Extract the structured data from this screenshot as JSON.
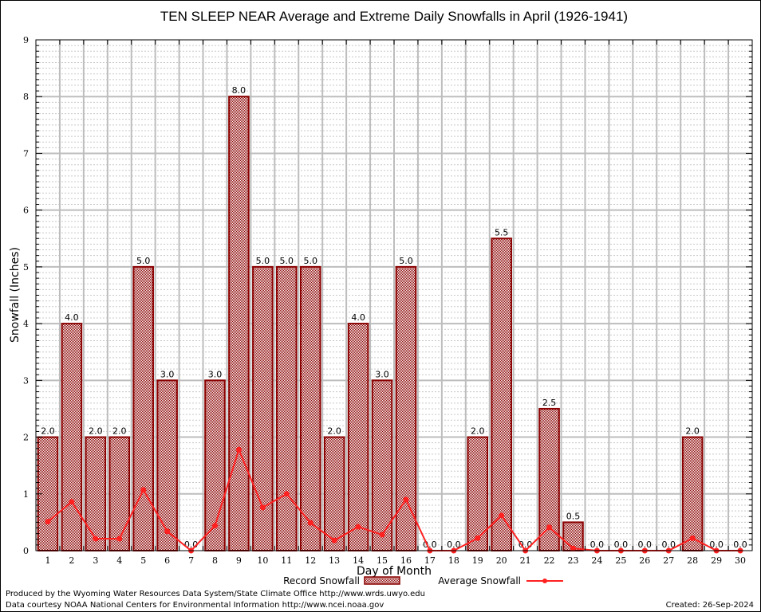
{
  "chart_data": {
    "type": "bar",
    "title": "TEN SLEEP NEAR Average and Extreme Daily Snowfalls in April (1926-1941)",
    "xlabel": "Day of Month",
    "ylabel": "Snowfall (Inches)",
    "ylim": [
      0,
      9
    ],
    "yticks": [
      "0",
      "1",
      "2",
      "3",
      "4",
      "5",
      "6",
      "7",
      "8",
      "9"
    ],
    "grid": true,
    "legend_position": "bottom-center",
    "categories": [
      "1",
      "2",
      "3",
      "4",
      "5",
      "6",
      "7",
      "8",
      "9",
      "10",
      "11",
      "12",
      "13",
      "14",
      "15",
      "16",
      "17",
      "18",
      "19",
      "20",
      "21",
      "22",
      "23",
      "24",
      "25",
      "26",
      "27",
      "28",
      "29",
      "30"
    ],
    "series": [
      {
        "name": "Record Snowfall",
        "type": "bar",
        "color": "#8b0000",
        "values": [
          2.0,
          4.0,
          2.0,
          2.0,
          5.0,
          3.0,
          0.0,
          3.0,
          8.0,
          5.0,
          5.0,
          5.0,
          2.0,
          4.0,
          3.0,
          5.0,
          0.0,
          0.0,
          2.0,
          5.5,
          0.0,
          2.5,
          0.5,
          0.0,
          0.0,
          0.0,
          0.0,
          2.0,
          0.0,
          0.0
        ],
        "labels": [
          "2.0",
          "4.0",
          "2.0",
          "2.0",
          "5.0",
          "3.0",
          "0.0",
          "3.0",
          "8.0",
          "5.0",
          "5.0",
          "5.0",
          "2.0",
          "4.0",
          "3.0",
          "5.0",
          "0.0",
          "0.0",
          "2.0",
          "5.5",
          "0.0",
          "2.5",
          "0.5",
          "0.0",
          "0.0",
          "0.0",
          "0.0",
          "2.0",
          "0.0",
          "0.0"
        ]
      },
      {
        "name": "Average Snowfall",
        "type": "line",
        "color": "#ff2020",
        "values": [
          0.51,
          0.86,
          0.21,
          0.21,
          1.07,
          0.34,
          0.0,
          0.44,
          1.78,
          0.76,
          1.0,
          0.49,
          0.18,
          0.42,
          0.28,
          0.9,
          0.0,
          0.0,
          0.22,
          0.62,
          0.0,
          0.41,
          0.04,
          0.0,
          0.0,
          0.0,
          0.0,
          0.22,
          0.0,
          0.0
        ]
      }
    ]
  },
  "footer": {
    "produced_by": "Produced by the Wyoming Water Resources Data System/State Climate Office http://www.wrds.uwyo.edu",
    "data_courtesy": "Data courtesy NOAA National Centers for Environmental Information http://www.ncei.noaa.gov",
    "created": "Created:  26-Sep-2024"
  }
}
